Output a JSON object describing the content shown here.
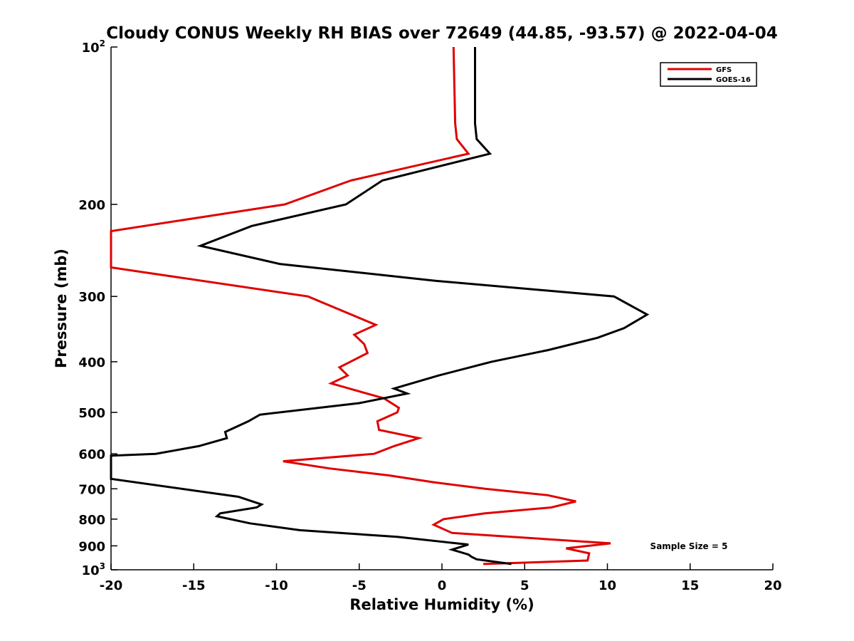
{
  "chart_data": {
    "type": "line",
    "title": "Cloudy CONUS Weekly RH BIAS over 72649 (44.85, -93.57) @ 2022-04-04",
    "xlabel": "Relative Humidity (%)",
    "ylabel": "Pressure (mb)",
    "xlim": [
      -20,
      20
    ],
    "ylim": [
      100,
      1000
    ],
    "y_scale": "log",
    "y_reversed": true,
    "x_ticks": [
      "-20",
      "-15",
      "-10",
      "-5",
      "0",
      "5",
      "10",
      "15",
      "20"
    ],
    "y_ticks": [
      {
        "value": 100,
        "base": "10",
        "exp": "2"
      },
      {
        "value": 200,
        "label": "200"
      },
      {
        "value": 300,
        "label": "300"
      },
      {
        "value": 400,
        "label": "400"
      },
      {
        "value": 500,
        "label": "500"
      },
      {
        "value": 600,
        "label": "600"
      },
      {
        "value": 700,
        "label": "700"
      },
      {
        "value": 800,
        "label": "800"
      },
      {
        "value": 900,
        "label": "900"
      },
      {
        "value": 1000,
        "base": "10",
        "exp": "3"
      }
    ],
    "grid": false,
    "legend_position": "top-right",
    "annotation": "Sample Size = 5",
    "series": [
      {
        "name": "GFS",
        "color": "#e00000",
        "points": [
          {
            "x": 2.5,
            "p": 975
          },
          {
            "x": 8.8,
            "p": 960
          },
          {
            "x": 8.9,
            "p": 930
          },
          {
            "x": 7.5,
            "p": 910
          },
          {
            "x": 10.2,
            "p": 890
          },
          {
            "x": 0.6,
            "p": 850
          },
          {
            "x": -0.5,
            "p": 820
          },
          {
            "x": 0.1,
            "p": 800
          },
          {
            "x": 2.6,
            "p": 780
          },
          {
            "x": 6.6,
            "p": 760
          },
          {
            "x": 8.1,
            "p": 740
          },
          {
            "x": 6.4,
            "p": 720
          },
          {
            "x": 2.6,
            "p": 700
          },
          {
            "x": -0.5,
            "p": 680
          },
          {
            "x": -3.2,
            "p": 660
          },
          {
            "x": -6.8,
            "p": 640
          },
          {
            "x": -9.6,
            "p": 620
          },
          {
            "x": -4.1,
            "p": 600
          },
          {
            "x": -2.9,
            "p": 580
          },
          {
            "x": -1.4,
            "p": 560
          },
          {
            "x": -3.8,
            "p": 540
          },
          {
            "x": -3.9,
            "p": 520
          },
          {
            "x": -2.7,
            "p": 500
          },
          {
            "x": -2.6,
            "p": 490
          },
          {
            "x": -3.5,
            "p": 470
          },
          {
            "x": -6.7,
            "p": 440
          },
          {
            "x": -5.7,
            "p": 425
          },
          {
            "x": -6.2,
            "p": 410
          },
          {
            "x": -4.5,
            "p": 385
          },
          {
            "x": -4.7,
            "p": 370
          },
          {
            "x": -5.3,
            "p": 355
          },
          {
            "x": -4.0,
            "p": 340
          },
          {
            "x": -8.1,
            "p": 300
          },
          {
            "x": -20.0,
            "p": 264
          },
          {
            "x": -20.0,
            "p": 225
          },
          {
            "x": -9.5,
            "p": 200
          },
          {
            "x": -5.5,
            "p": 180
          },
          {
            "x": 1.6,
            "p": 160
          },
          {
            "x": 0.9,
            "p": 150
          },
          {
            "x": 0.8,
            "p": 140
          },
          {
            "x": 0.7,
            "p": 100
          }
        ]
      },
      {
        "name": "GOES-16",
        "color": "#000000",
        "points": [
          {
            "x": 4.2,
            "p": 975
          },
          {
            "x": 2.1,
            "p": 955
          },
          {
            "x": 1.8,
            "p": 945
          },
          {
            "x": 1.6,
            "p": 935
          },
          {
            "x": 0.6,
            "p": 915
          },
          {
            "x": 1.6,
            "p": 895
          },
          {
            "x": -2.7,
            "p": 865
          },
          {
            "x": -8.6,
            "p": 840
          },
          {
            "x": -11.6,
            "p": 815
          },
          {
            "x": -13.6,
            "p": 790
          },
          {
            "x": -13.4,
            "p": 780
          },
          {
            "x": -11.2,
            "p": 760
          },
          {
            "x": -10.9,
            "p": 750
          },
          {
            "x": -12.3,
            "p": 725
          },
          {
            "x": -20.0,
            "p": 670
          },
          {
            "x": -20.0,
            "p": 605
          },
          {
            "x": -17.3,
            "p": 600
          },
          {
            "x": -14.7,
            "p": 580
          },
          {
            "x": -13.0,
            "p": 560
          },
          {
            "x": -13.1,
            "p": 545
          },
          {
            "x": -11.7,
            "p": 520
          },
          {
            "x": -11.0,
            "p": 505
          },
          {
            "x": -5.0,
            "p": 480
          },
          {
            "x": -2.1,
            "p": 460
          },
          {
            "x": -2.9,
            "p": 450
          },
          {
            "x": -0.2,
            "p": 425
          },
          {
            "x": 3.0,
            "p": 400
          },
          {
            "x": 6.4,
            "p": 380
          },
          {
            "x": 9.4,
            "p": 360
          },
          {
            "x": 11.0,
            "p": 345
          },
          {
            "x": 12.4,
            "p": 325
          },
          {
            "x": 10.4,
            "p": 300
          },
          {
            "x": -0.4,
            "p": 280
          },
          {
            "x": -9.8,
            "p": 260
          },
          {
            "x": -14.6,
            "p": 240
          },
          {
            "x": -11.5,
            "p": 220
          },
          {
            "x": -5.8,
            "p": 200
          },
          {
            "x": -3.6,
            "p": 180
          },
          {
            "x": 2.9,
            "p": 160
          },
          {
            "x": 2.1,
            "p": 150
          },
          {
            "x": 2.0,
            "p": 140
          },
          {
            "x": 2.0,
            "p": 100
          }
        ]
      }
    ]
  }
}
